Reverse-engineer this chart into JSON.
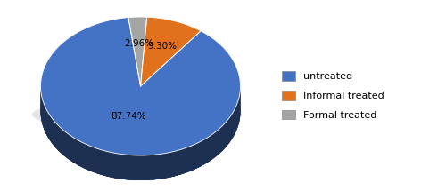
{
  "labels": [
    "untreated",
    "Informal treated",
    "Formal treated"
  ],
  "values": [
    87.74,
    9.3,
    2.96
  ],
  "colors": [
    "#4472C4",
    "#E2711D",
    "#A5A5A5"
  ],
  "dark_colors": [
    "#1F3A6E",
    "#7A3A0D",
    "#5A5A5A"
  ],
  "side_color": "#1F3864",
  "pct_labels": [
    "87.74%",
    "9.30%",
    "2.96%"
  ],
  "startangle": 97,
  "figsize": [
    5.0,
    2.15
  ],
  "dpi": 100,
  "depth": 0.28
}
